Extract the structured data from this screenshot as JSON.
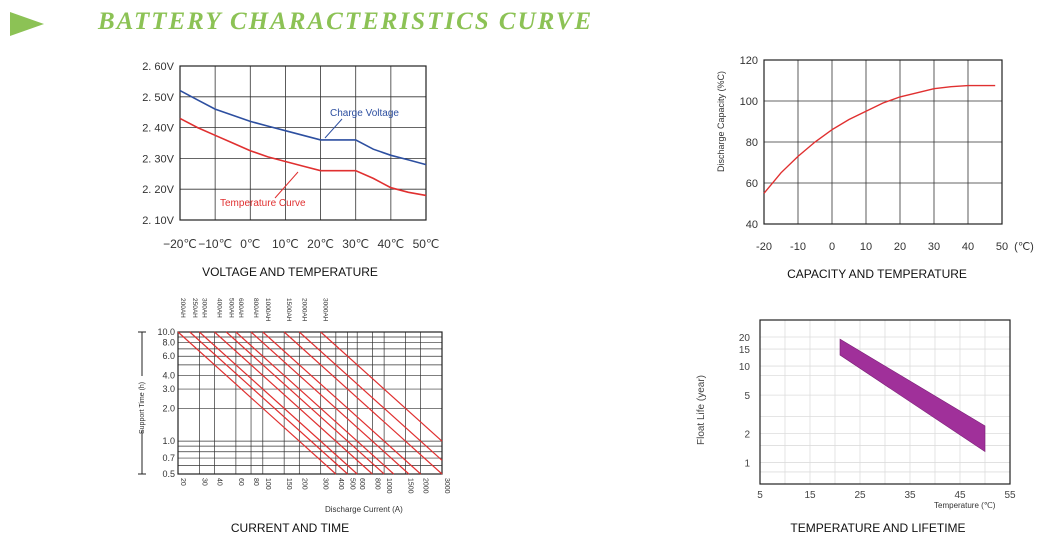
{
  "header": {
    "title": "BATTERY  CHARACTERISTICS CURVE",
    "accent": "#8cc255",
    "icon": "play-arrow-icon"
  },
  "chart_data": [
    {
      "id": "voltage",
      "type": "line",
      "title": "VOLTAGE AND TEMPERATURE",
      "x_ticks": [
        "−20℃",
        "−10℃",
        "0℃",
        "10℃",
        "20℃",
        "30℃",
        "40℃",
        "50℃"
      ],
      "y_ticks": [
        "2. 60V",
        "2. 50V",
        "2. 40V",
        "2. 30V",
        "2. 20V",
        "2. 10V"
      ],
      "xlim": [
        -20,
        50
      ],
      "ylim": [
        2.1,
        2.6
      ],
      "grid": true,
      "series": [
        {
          "name": "Charge Voltage",
          "color": "#2d4fa0",
          "x": [
            -20,
            -15,
            -10,
            -5,
            0,
            5,
            10,
            15,
            20,
            25,
            30,
            35,
            40,
            45,
            50
          ],
          "y": [
            2.52,
            2.49,
            2.46,
            2.44,
            2.42,
            2.405,
            2.39,
            2.375,
            2.36,
            2.36,
            2.36,
            2.33,
            2.31,
            2.295,
            2.28
          ]
        },
        {
          "name": "Temperature Curve",
          "color": "#e03030",
          "x": [
            -20,
            -15,
            -10,
            -5,
            0,
            5,
            10,
            15,
            20,
            25,
            30,
            35,
            40,
            45,
            50
          ],
          "y": [
            2.43,
            2.4,
            2.375,
            2.35,
            2.325,
            2.305,
            2.29,
            2.275,
            2.26,
            2.26,
            2.26,
            2.235,
            2.205,
            2.19,
            2.18
          ]
        }
      ]
    },
    {
      "id": "capacity",
      "type": "line",
      "title": "CAPACITY AND TEMPERATURE",
      "ylabel": "Discharge Capacity (%C)",
      "x_ticks": [
        "-20",
        "-10",
        "0",
        "10",
        "20",
        "30",
        "40",
        "50",
        "(℃)"
      ],
      "y_ticks": [
        "120",
        "100",
        "80",
        "60",
        "40"
      ],
      "xlim": [
        -20,
        50
      ],
      "ylim": [
        40,
        120
      ],
      "grid": true,
      "series": [
        {
          "color": "#e03030",
          "x": [
            -20,
            -15,
            -10,
            -5,
            0,
            5,
            10,
            15,
            20,
            25,
            30,
            35,
            40,
            45,
            48
          ],
          "y": [
            55,
            65,
            73,
            80,
            86,
            91,
            95,
            99,
            102,
            104,
            106,
            107,
            107.5,
            107.5,
            107.5
          ]
        }
      ]
    },
    {
      "id": "current",
      "type": "line",
      "title": "CURRENT AND TIME",
      "ylabel": "Support Time (h)",
      "xlabel": "Discharge Current (A)",
      "x_ticks": [
        "20",
        "30",
        "40",
        "60",
        "80",
        "100",
        "150",
        "200",
        "300",
        "400",
        "500",
        "600",
        "800",
        "1000",
        "1500",
        "2000",
        "3000"
      ],
      "y_ticks": [
        "10.0",
        "8.0",
        "6.0",
        "4.0",
        "3.0",
        "2.0",
        "1.0",
        "0.7",
        "0.5"
      ],
      "top_labels": [
        "200AH",
        "250AH",
        "300AH",
        "400AH",
        "500AH",
        "600AH",
        "800AH",
        "1000AH",
        "1500AH",
        "2000AH",
        "3000AH"
      ],
      "xlim": [
        20,
        3000
      ],
      "ylim": [
        0.5,
        10
      ],
      "log_x": true,
      "log_y": true,
      "grid": true,
      "series_color": "#e03030",
      "series_start_x": [
        20,
        25,
        30,
        40,
        50,
        60,
        80,
        100,
        150,
        200,
        300
      ]
    },
    {
      "id": "lifetime",
      "type": "area",
      "title": "TEMPERATURE AND LIFETIME",
      "ylabel": "Float Life (year)",
      "xlabel": "Temperature (℃)",
      "x_ticks": [
        "5",
        "15",
        "25",
        "35",
        "45",
        "55"
      ],
      "y_ticks": [
        "20",
        "15",
        "10",
        "5",
        "2",
        "1"
      ],
      "band_color": "#a0309a",
      "band": {
        "x": [
          21,
          50
        ],
        "upper": [
          19,
          2.4
        ],
        "lower": [
          13,
          1.3
        ]
      }
    }
  ]
}
